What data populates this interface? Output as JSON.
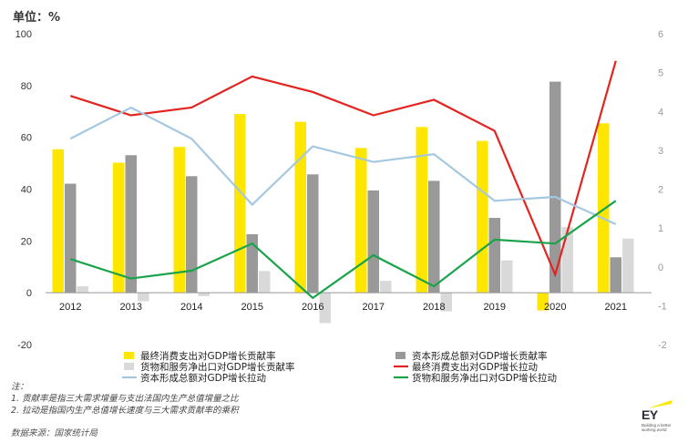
{
  "unit_label": "单位：%",
  "notes": {
    "heading": "注：",
    "line1": "1.   贡献率是指三大需求增量与支出法国内生产总值增量之比",
    "line2": "2.   拉动是指国内生产总值增长速度与三大需求贡献率的乘积"
  },
  "source": "数据来源：国家统计局",
  "logo": {
    "name": "EY",
    "tagline": "Building a better working world",
    "accent_color": "#ffe600"
  },
  "chart_data": {
    "type": "bar",
    "categories": [
      "2012",
      "2013",
      "2014",
      "2015",
      "2016",
      "2017",
      "2018",
      "2019",
      "2020",
      "2021"
    ],
    "y_left": {
      "min": -20,
      "max": 100,
      "ticks": [
        -20,
        0,
        20,
        40,
        60,
        80,
        100
      ]
    },
    "y_right": {
      "min": -2,
      "max": 6,
      "ticks": [
        -2,
        -1,
        0,
        1,
        2,
        3,
        4,
        5,
        6
      ]
    },
    "bar_series": [
      {
        "name": "最终消费支出对GDP增长贡献率",
        "color": "#ffe600",
        "axis": "left",
        "values": [
          55.4,
          50.2,
          56.3,
          69.0,
          66.0,
          55.9,
          64.0,
          58.6,
          -6.8,
          65.4
        ]
      },
      {
        "name": "资本形成总额对GDP增长贡献率",
        "color": "#999999",
        "axis": "left",
        "values": [
          42.1,
          53.1,
          45.0,
          22.6,
          45.7,
          39.5,
          43.2,
          28.9,
          81.5,
          13.7
        ]
      },
      {
        "name": "货物和服务净出口对GDP增长贡献率",
        "color": "#d9d9d9",
        "axis": "left",
        "values": [
          2.5,
          -3.3,
          -1.3,
          8.4,
          -11.7,
          4.6,
          -7.2,
          12.5,
          25.3,
          20.9
        ]
      }
    ],
    "line_series": [
      {
        "name": "最终消费支出对GDP增长拉动",
        "color": "#e32421",
        "axis": "right",
        "values": [
          4.4,
          3.9,
          4.1,
          4.9,
          4.5,
          3.9,
          4.3,
          3.5,
          -0.2,
          5.3
        ]
      },
      {
        "name": "资本形成总额对GDP增长拉动",
        "color": "#a5c8e1",
        "axis": "right",
        "values": [
          3.3,
          4.1,
          3.3,
          1.6,
          3.1,
          2.7,
          2.9,
          1.7,
          1.8,
          1.1
        ]
      },
      {
        "name": "货物和服务净出口对GDP增长拉动",
        "color": "#1aa34a",
        "axis": "right",
        "values": [
          0.2,
          -0.3,
          -0.1,
          0.6,
          -0.8,
          0.3,
          -0.5,
          0.7,
          0.6,
          1.7
        ]
      }
    ],
    "legend_order": [
      "最终消费支出对GDP增长贡献率",
      "资本形成总额对GDP增长贡献率",
      "货物和服务净出口对GDP增长贡献率",
      "最终消费支出对GDP增长拉动",
      "资本形成总额对GDP增长拉动",
      "货物和服务净出口对GDP增长拉动"
    ],
    "legend_position": "bottom",
    "grid": false
  }
}
